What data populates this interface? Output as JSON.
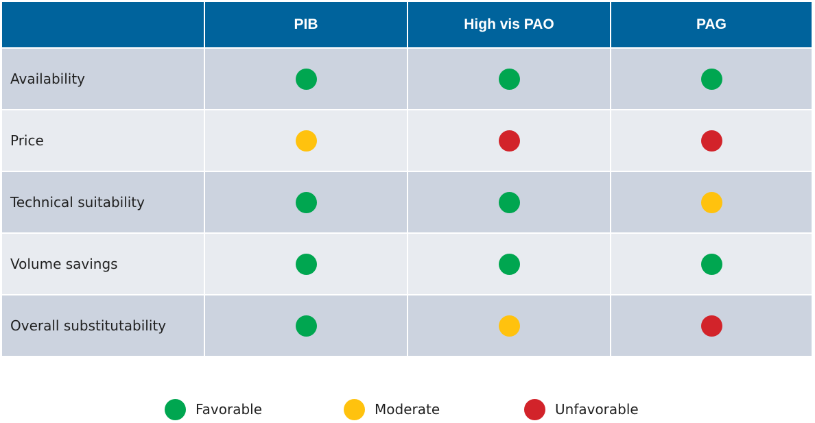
{
  "colors": {
    "header_bg": "#00639c",
    "row_dark": "#ccd3df",
    "row_light": "#e8ebf0",
    "Favorable": "#00a650",
    "Moderate": "#ffc20e",
    "Unfavorable": "#d2232a"
  },
  "table": {
    "corner": "",
    "columns": [
      "PIB",
      "High vis PAO",
      "PAG"
    ],
    "rows": [
      {
        "label": "Availability",
        "ratings": [
          "Favorable",
          "Favorable",
          "Favorable"
        ]
      },
      {
        "label": "Price",
        "ratings": [
          "Moderate",
          "Unfavorable",
          "Unfavorable"
        ]
      },
      {
        "label": "Technical suitability",
        "ratings": [
          "Favorable",
          "Favorable",
          "Moderate"
        ]
      },
      {
        "label": "Volume savings",
        "ratings": [
          "Favorable",
          "Favorable",
          "Favorable"
        ]
      },
      {
        "label": "Overall substitutability",
        "ratings": [
          "Favorable",
          "Moderate",
          "Unfavorable"
        ]
      }
    ]
  },
  "legend": {
    "items": [
      {
        "label": "Favorable",
        "icon": "green-dot-icon"
      },
      {
        "label": "Moderate",
        "icon": "yellow-dot-icon"
      },
      {
        "label": "Unfavorable",
        "icon": "red-dot-icon"
      }
    ]
  },
  "chart_data": {
    "type": "table",
    "columns": [
      "PIB",
      "High vis PAO",
      "PAG"
    ],
    "rows": [
      "Availability",
      "Price",
      "Technical suitability",
      "Volume savings",
      "Overall substitutability"
    ],
    "values": [
      [
        "Favorable",
        "Favorable",
        "Favorable"
      ],
      [
        "Moderate",
        "Unfavorable",
        "Unfavorable"
      ],
      [
        "Favorable",
        "Favorable",
        "Moderate"
      ],
      [
        "Favorable",
        "Favorable",
        "Favorable"
      ],
      [
        "Favorable",
        "Moderate",
        "Unfavorable"
      ]
    ],
    "legend": [
      "Favorable",
      "Moderate",
      "Unfavorable"
    ],
    "legend_position": "bottom"
  }
}
